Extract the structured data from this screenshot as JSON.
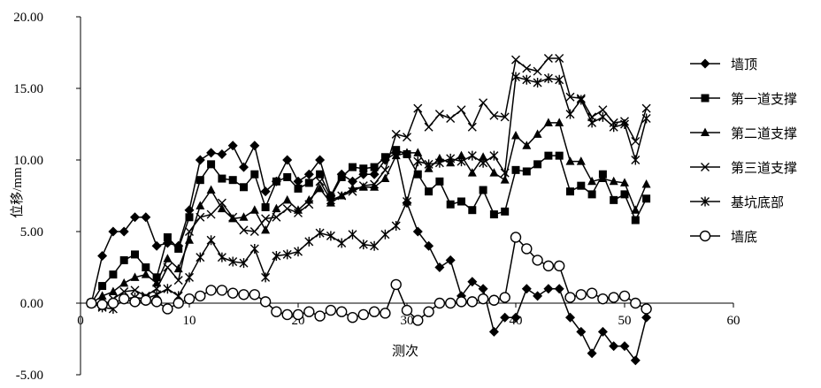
{
  "chart_data": {
    "type": "line",
    "title": "",
    "xlabel": "测次",
    "ylabel": "位移/mm",
    "xlim": [
      0,
      60
    ],
    "ylim": [
      -5,
      20
    ],
    "xticks": [
      0,
      10,
      20,
      30,
      40,
      50,
      60
    ],
    "yticks": [
      -5,
      0,
      5,
      10,
      15,
      20
    ],
    "ytick_labels": [
      "-5.00",
      "0.00",
      "5.00",
      "10.00",
      "15.00",
      "20.00"
    ],
    "grid": false,
    "legend_position": "right",
    "x": [
      1,
      2,
      3,
      4,
      5,
      6,
      7,
      8,
      9,
      10,
      11,
      12,
      13,
      14,
      15,
      16,
      17,
      18,
      19,
      20,
      21,
      22,
      23,
      24,
      25,
      26,
      27,
      28,
      29,
      30,
      31,
      32,
      33,
      34,
      35,
      36,
      37,
      38,
      39,
      40,
      41,
      42,
      43,
      44,
      45,
      46,
      47,
      48,
      49,
      50,
      51,
      52
    ],
    "series": [
      {
        "name": "墙顶",
        "marker": "diamond",
        "values": [
          0,
          3.3,
          5,
          5,
          6,
          6,
          4,
          4.2,
          4,
          6.5,
          10,
          10.5,
          10.4,
          11,
          9.5,
          11,
          7.8,
          8.5,
          10,
          8.5,
          9,
          10,
          7.5,
          9,
          8.5,
          9,
          9,
          10,
          10.5,
          7,
          5,
          4,
          2.5,
          3,
          0.5,
          1.5,
          1,
          -2,
          -1,
          -1,
          1,
          0.5,
          1,
          1,
          -1,
          -2,
          -3.5,
          -2,
          -3,
          -3,
          -4,
          -1
        ]
      },
      {
        "name": "第一道支撑",
        "marker": "square",
        "values": [
          0,
          1.2,
          2,
          3,
          3.4,
          2.5,
          1.8,
          4.6,
          3.8,
          6,
          8.6,
          9.7,
          8.7,
          8.6,
          8.1,
          9,
          6.7,
          8.5,
          8.8,
          8,
          8.4,
          9,
          7.4,
          8.8,
          9.5,
          9.4,
          9.5,
          10.2,
          10.7,
          10.4,
          9,
          7.8,
          8.5,
          6.9,
          7.1,
          6.5,
          7.9,
          6.2,
          6.4,
          9.3,
          9.2,
          9.7,
          10.3,
          10.3,
          7.8,
          8.2,
          7.6,
          9,
          7.2,
          7.6,
          5.8,
          7.3
        ]
      },
      {
        "name": "第二道支撑",
        "marker": "triangle",
        "values": [
          0,
          0.5,
          0.8,
          1.4,
          1.8,
          2,
          1.4,
          3.1,
          2.4,
          4.4,
          6.8,
          7.9,
          6.6,
          5.9,
          6,
          6.5,
          5.1,
          6.6,
          7.2,
          6.5,
          7.2,
          8,
          7,
          7.5,
          8,
          8.1,
          8.1,
          8.7,
          10.3,
          10.5,
          10.5,
          9.4,
          10.1,
          9.8,
          10.3,
          9.1,
          10.2,
          9.1,
          8.6,
          11.7,
          11,
          11.8,
          12.6,
          12.6,
          9.9,
          9.9,
          8.5,
          8.7,
          8.5,
          8.4,
          6.5,
          8.3
        ]
      },
      {
        "name": "第三道支撑",
        "marker": "x",
        "values": [
          0,
          -0.2,
          0.3,
          0.8,
          0.9,
          0.5,
          1,
          2.5,
          1.6,
          5,
          6,
          6.2,
          7,
          6,
          5.1,
          5,
          5.9,
          6,
          6.6,
          6.3,
          6.9,
          8.5,
          7.2,
          7.5,
          7.8,
          8.2,
          8.3,
          9.3,
          11.8,
          11.6,
          13.6,
          12.3,
          13.2,
          12.9,
          13.5,
          12.3,
          14,
          13.1,
          13,
          17,
          16.4,
          16.2,
          17.1,
          17.1,
          14.4,
          14.3,
          13,
          13.5,
          12.6,
          12.7,
          11.3,
          13.6
        ]
      },
      {
        "name": "基坑底部",
        "marker": "star",
        "values": [
          0,
          -0.3,
          -0.4,
          0.3,
          0.4,
          0.3,
          0.6,
          1,
          0.5,
          1.8,
          3.2,
          4.4,
          3.2,
          2.9,
          2.8,
          3.8,
          1.8,
          3.3,
          3.4,
          3.6,
          4.3,
          4.9,
          4.7,
          4.2,
          4.8,
          4.1,
          4,
          4.8,
          5.4,
          7.1,
          9.9,
          9.7,
          9.8,
          10.1,
          9.9,
          10.3,
          9.8,
          10.3,
          9.1,
          15.8,
          15.6,
          15.4,
          15.7,
          15.6,
          13.2,
          14.2,
          12.6,
          13,
          12.3,
          12.5,
          10,
          12.9
        ]
      },
      {
        "name": "墙底",
        "marker": "circle",
        "values": [
          0,
          -0.1,
          0,
          0.3,
          0.1,
          0.2,
          0.1,
          -0.4,
          0,
          0.3,
          0.5,
          0.9,
          0.9,
          0.7,
          0.6,
          0.6,
          0.1,
          -0.6,
          -0.8,
          -0.8,
          -0.6,
          -0.9,
          -0.5,
          -0.6,
          -1,
          -0.8,
          -0.6,
          -0.7,
          1.3,
          -0.5,
          -1.2,
          -0.6,
          0,
          0,
          0.1,
          0.1,
          0.3,
          0.2,
          0.4,
          4.6,
          3.8,
          3,
          2.6,
          2.6,
          0.4,
          0.6,
          0.7,
          0.3,
          0.4,
          0.5,
          0,
          -0.4
        ]
      }
    ]
  }
}
